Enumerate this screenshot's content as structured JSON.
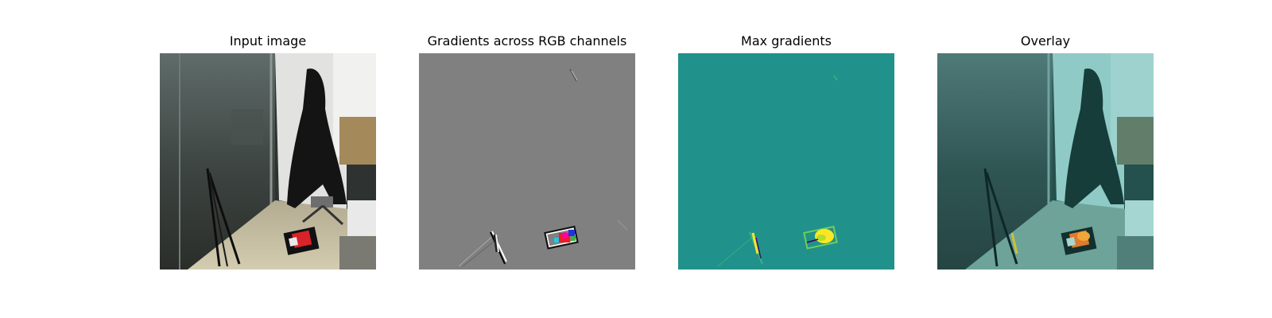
{
  "panels": [
    {
      "title": "Input image"
    },
    {
      "title": "Gradients across RGB channels"
    },
    {
      "title": "Max gradients"
    },
    {
      "title": "Overlay"
    }
  ],
  "colors": {
    "gradient_gray": "#808080",
    "max_grad_bg": "#21918c",
    "max_grad_peak": "#fde725",
    "overlay_tint": "#1f8f8b"
  }
}
